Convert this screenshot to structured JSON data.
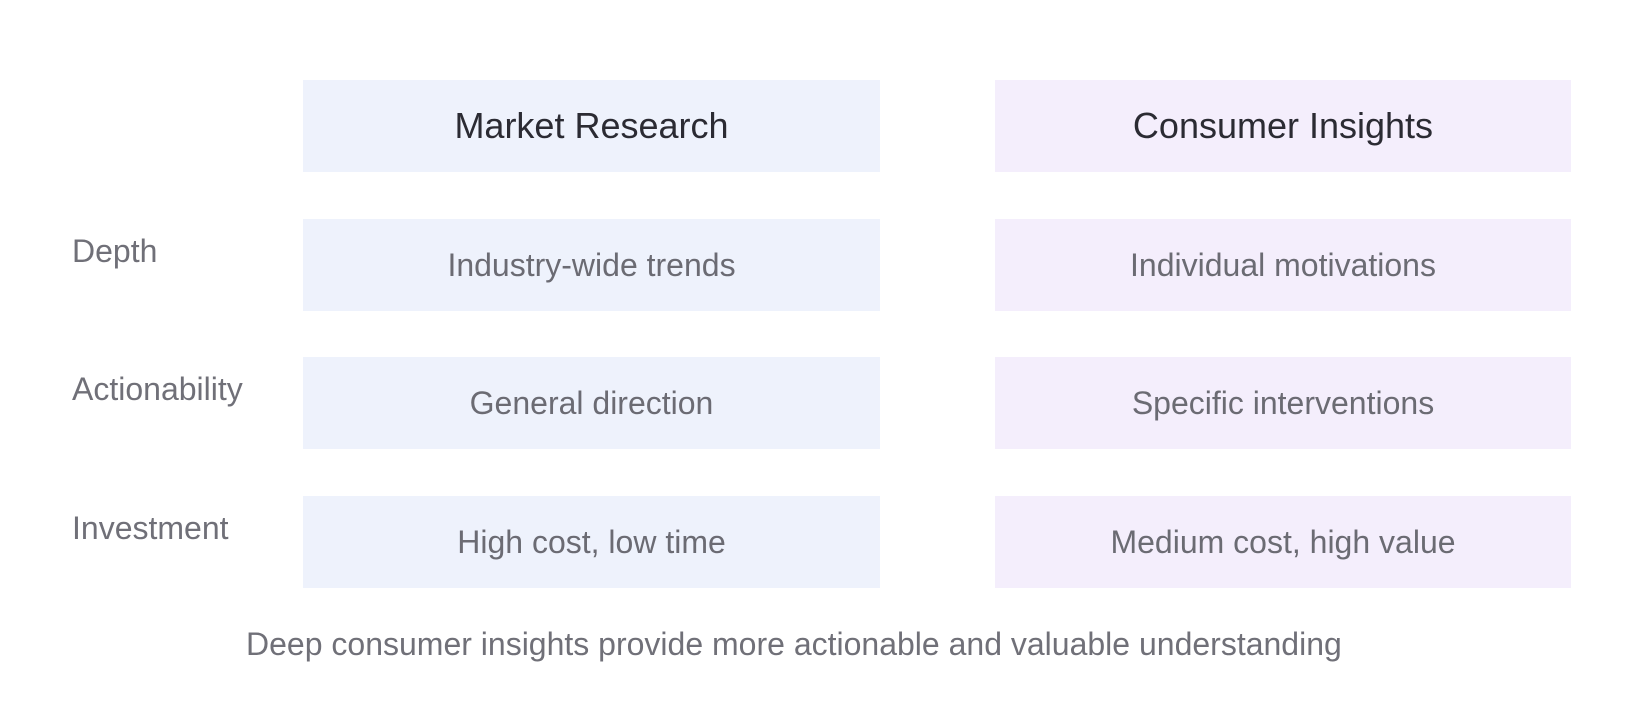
{
  "colors": {
    "market_fill": "#eef2fc",
    "consumer_fill": "#f4eefc",
    "heading_text": "#2b2b33",
    "body_text": "#6b6b73"
  },
  "columns": {
    "market": {
      "title": "Market Research",
      "depth": "Industry-wide trends",
      "actionability": "General direction",
      "investment": "High cost, low time"
    },
    "consumer": {
      "title": "Consumer Insights",
      "depth": "Individual motivations",
      "actionability": "Specific interventions",
      "investment": "Medium cost, high value"
    }
  },
  "rows": {
    "depth": "Depth",
    "actionability": "Actionability",
    "investment": "Investment"
  },
  "footer": "Deep consumer insights provide more actionable and valuable understanding"
}
